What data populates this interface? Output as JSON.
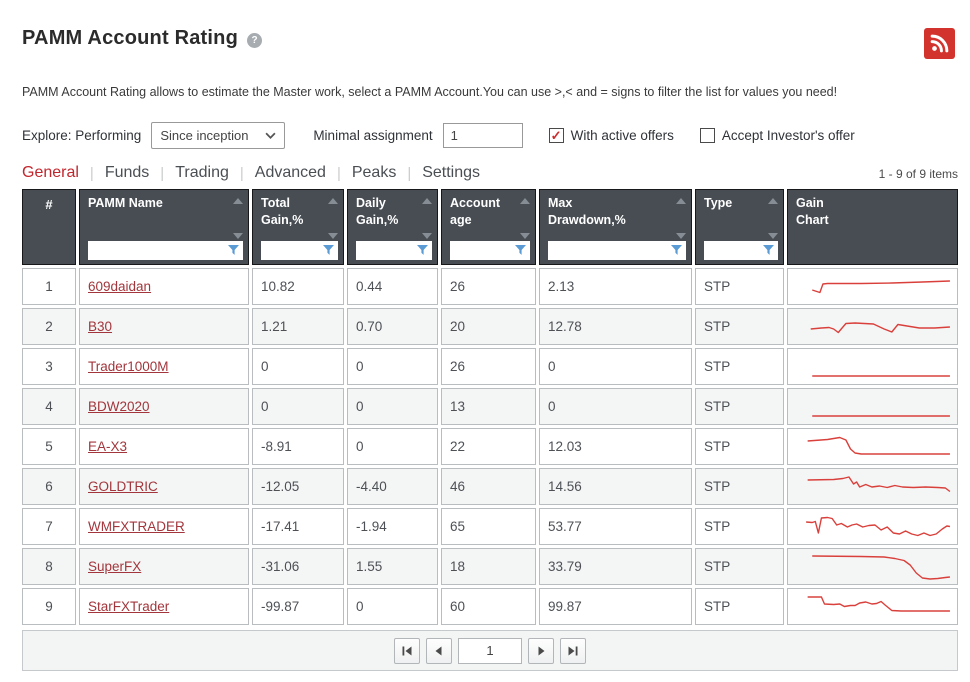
{
  "page": {
    "title": "PAMM Account Rating",
    "help_icon": "?",
    "description": "PAMM Account Rating allows to estimate the Master work, select a PAMM Account.You can use >,< and = signs to filter the list for values you need!"
  },
  "filters": {
    "explore_label": "Explore: Performing",
    "period_value": "Since inception",
    "minimal_assignment_label": "Minimal assignment",
    "minimal_assignment_value": "1",
    "with_active_offers": {
      "label": "With active offers",
      "checked": true
    },
    "accept_investors_offer": {
      "label": "Accept Investor's offer",
      "checked": false
    }
  },
  "tabs": {
    "items": [
      {
        "label": "General",
        "active": true
      },
      {
        "label": "Funds",
        "active": false
      },
      {
        "label": "Trading",
        "active": false
      },
      {
        "label": "Advanced",
        "active": false
      },
      {
        "label": "Peaks",
        "active": false
      },
      {
        "label": "Settings",
        "active": false
      }
    ],
    "items_count": "1 - 9 of 9 items"
  },
  "table": {
    "columns": [
      {
        "label": "#",
        "sortable": false,
        "filterable": false
      },
      {
        "label": "PAMM Name",
        "sortable": true,
        "filterable": true
      },
      {
        "label": "Total Gain,%",
        "sortable": true,
        "filterable": true
      },
      {
        "label": "Daily Gain,%",
        "sortable": true,
        "filterable": true
      },
      {
        "label": "Account age",
        "sortable": true,
        "filterable": true
      },
      {
        "label": "Max Drawdown,%",
        "sortable": true,
        "filterable": true
      },
      {
        "label": "Type",
        "sortable": true,
        "filterable": true
      },
      {
        "label": "Gain Chart",
        "sortable": false,
        "filterable": false
      }
    ],
    "rows": [
      {
        "num": "1",
        "name": "609daidan",
        "total_gain": "10.82",
        "daily_gain": "0.44",
        "account_age": "26",
        "max_drawdown": "2.13",
        "type": "STP",
        "spark": [
          [
            8,
            18
          ],
          [
            11,
            19.5
          ],
          [
            13,
            20.5
          ],
          [
            15,
            12
          ],
          [
            18,
            11.5
          ],
          [
            40,
            11.5
          ],
          [
            60,
            11
          ],
          [
            80,
            10
          ],
          [
            98,
            9
          ]
        ]
      },
      {
        "num": "2",
        "name": "B30",
        "total_gain": "1.21",
        "daily_gain": "0.70",
        "account_age": "20",
        "max_drawdown": "12.78",
        "type": "STP",
        "spark": [
          [
            7,
            17
          ],
          [
            14,
            16
          ],
          [
            19,
            15.5
          ],
          [
            22,
            17
          ],
          [
            25,
            20.5
          ],
          [
            30,
            11.5
          ],
          [
            36,
            11
          ],
          [
            42,
            11.5
          ],
          [
            48,
            12
          ],
          [
            55,
            17
          ],
          [
            60,
            20
          ],
          [
            64,
            12.5
          ],
          [
            70,
            14
          ],
          [
            78,
            16
          ],
          [
            88,
            16
          ],
          [
            98,
            15
          ]
        ]
      },
      {
        "num": "3",
        "name": "Trader1000M",
        "total_gain": "0",
        "daily_gain": "0",
        "account_age": "26",
        "max_drawdown": "0",
        "type": "STP",
        "spark": [
          [
            8,
            24
          ],
          [
            98,
            24
          ]
        ]
      },
      {
        "num": "4",
        "name": "BDW2020",
        "total_gain": "0",
        "daily_gain": "0",
        "account_age": "13",
        "max_drawdown": "0",
        "type": "STP",
        "spark": [
          [
            8,
            24
          ],
          [
            98,
            24
          ]
        ]
      },
      {
        "num": "5",
        "name": "EA-X3",
        "total_gain": "-8.91",
        "daily_gain": "0",
        "account_age": "22",
        "max_drawdown": "12.03",
        "type": "STP",
        "spark": [
          [
            5,
            9
          ],
          [
            18,
            7.5
          ],
          [
            26,
            5.5
          ],
          [
            30,
            8
          ],
          [
            33,
            17
          ],
          [
            36,
            21
          ],
          [
            40,
            22
          ],
          [
            98,
            22
          ]
        ]
      },
      {
        "num": "6",
        "name": "GOLDTRIC",
        "total_gain": "-12.05",
        "daily_gain": "-4.40",
        "account_age": "46",
        "max_drawdown": "14.56",
        "type": "STP",
        "spark": [
          [
            5,
            8
          ],
          [
            22,
            7.5
          ],
          [
            28,
            6.5
          ],
          [
            32,
            5
          ],
          [
            35,
            12
          ],
          [
            37,
            10
          ],
          [
            39,
            15
          ],
          [
            43,
            12.5
          ],
          [
            47,
            15
          ],
          [
            52,
            14
          ],
          [
            57,
            15.5
          ],
          [
            62,
            13.5
          ],
          [
            67,
            15
          ],
          [
            74,
            15.5
          ],
          [
            82,
            15
          ],
          [
            90,
            15.5
          ],
          [
            95,
            16
          ],
          [
            98,
            19.5
          ]
        ]
      },
      {
        "num": "7",
        "name": "WMFXTRADER",
        "total_gain": "-17.41",
        "daily_gain": "-1.94",
        "account_age": "65",
        "max_drawdown": "53.77",
        "type": "STP",
        "spark": [
          [
            4,
            10
          ],
          [
            8,
            10.5
          ],
          [
            10,
            9.5
          ],
          [
            12,
            21
          ],
          [
            14,
            6
          ],
          [
            18,
            5.5
          ],
          [
            21,
            6.5
          ],
          [
            24,
            13
          ],
          [
            27,
            11.5
          ],
          [
            31,
            15
          ],
          [
            34,
            13
          ],
          [
            37,
            12
          ],
          [
            41,
            15
          ],
          [
            45,
            13.5
          ],
          [
            49,
            13
          ],
          [
            53,
            18
          ],
          [
            57,
            15
          ],
          [
            61,
            21
          ],
          [
            65,
            22
          ],
          [
            69,
            19
          ],
          [
            73,
            22
          ],
          [
            77,
            23.5
          ],
          [
            81,
            21
          ],
          [
            85,
            23.5
          ],
          [
            89,
            22
          ],
          [
            93,
            17
          ],
          [
            96,
            14
          ],
          [
            98,
            14.5
          ]
        ]
      },
      {
        "num": "8",
        "name": "SuperFX",
        "total_gain": "-31.06",
        "daily_gain": "1.55",
        "account_age": "18",
        "max_drawdown": "33.79",
        "type": "STP",
        "spark": [
          [
            8,
            4
          ],
          [
            40,
            4.5
          ],
          [
            55,
            5
          ],
          [
            62,
            6.5
          ],
          [
            68,
            8.5
          ],
          [
            72,
            13
          ],
          [
            76,
            21
          ],
          [
            80,
            26
          ],
          [
            85,
            27
          ],
          [
            90,
            26.5
          ],
          [
            95,
            25.5
          ],
          [
            98,
            25
          ]
        ]
      },
      {
        "num": "9",
        "name": "StarFXTrader",
        "total_gain": "-99.87",
        "daily_gain": "0",
        "account_age": "60",
        "max_drawdown": "99.87",
        "type": "STP",
        "spark": [
          [
            5,
            5
          ],
          [
            14,
            5
          ],
          [
            16,
            12
          ],
          [
            22,
            12.5
          ],
          [
            26,
            12
          ],
          [
            29,
            14.5
          ],
          [
            33,
            13.5
          ],
          [
            36,
            13.5
          ],
          [
            39,
            11
          ],
          [
            43,
            10
          ],
          [
            47,
            12
          ],
          [
            50,
            11.5
          ],
          [
            53,
            9.5
          ],
          [
            56,
            13.5
          ],
          [
            60,
            18.5
          ],
          [
            66,
            19
          ],
          [
            98,
            19
          ]
        ]
      }
    ]
  },
  "pagination": {
    "page": "1"
  },
  "colors": {
    "accent_red": "#c1262c",
    "link_red": "#a2363c",
    "spark_red": "#d9403b",
    "header_bg": "#474d53",
    "rss_red": "#d2342d",
    "check_red": "#cc2b2b",
    "funnel_blue": "#5b9bd5"
  }
}
